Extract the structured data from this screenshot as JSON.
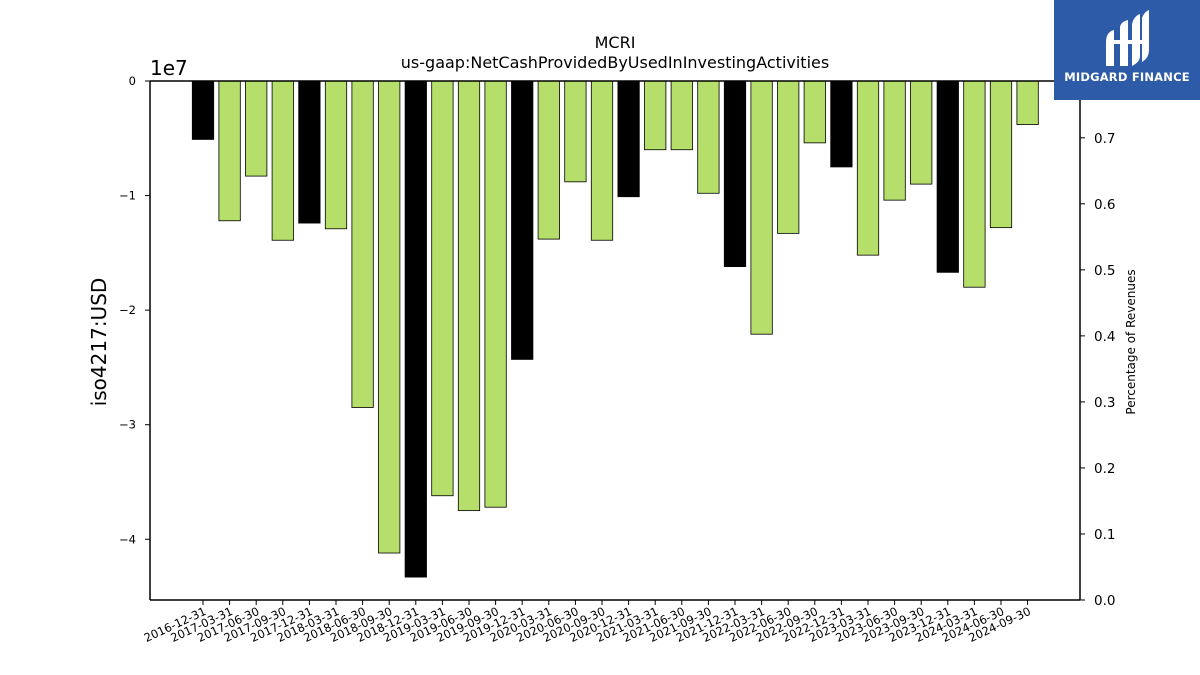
{
  "logo": {
    "text": "MIDGARD FINANCE",
    "icon": "midgard-mh-logo-icon",
    "bg_color": "#2d5ba8"
  },
  "chart_data": {
    "type": "bar",
    "title": "MCRI",
    "subtitle": "us-gaap:NetCashProvidedByUsedInInvestingActivities",
    "ylabel": "iso4217:USD",
    "ylabel_right": "Percentage of Revenues",
    "y_offset_label": "1e7",
    "y_scale": 10000000,
    "ylim": [
      -4.53,
      0
    ],
    "y_ticks": [
      0,
      -1,
      -2,
      -3,
      -4
    ],
    "y_tick_labels": [
      "0",
      "−1",
      "−2",
      "−3",
      "−4"
    ],
    "y2lim": [
      0.0,
      0.786
    ],
    "y2_ticks": [
      0.0,
      0.1,
      0.2,
      0.3,
      0.4,
      0.5,
      0.6,
      0.7
    ],
    "y2_tick_labels": [
      "0.0",
      "0.1",
      "0.2",
      "0.3",
      "0.4",
      "0.5",
      "0.6",
      "0.7"
    ],
    "categories": [
      "2016-12-31",
      "2017-03-31",
      "2017-06-30",
      "2017-09-30",
      "2017-12-31",
      "2018-03-31",
      "2018-06-30",
      "2018-09-30",
      "2018-12-31",
      "2019-03-31",
      "2019-06-30",
      "2019-09-30",
      "2019-12-31",
      "2020-03-31",
      "2020-06-30",
      "2020-09-30",
      "2020-12-31",
      "2021-03-31",
      "2021-06-30",
      "2021-09-30",
      "2021-12-31",
      "2022-03-31",
      "2022-06-30",
      "2022-09-30",
      "2022-12-31",
      "2023-03-31",
      "2023-06-30",
      "2023-09-30",
      "2023-12-31",
      "2024-03-31",
      "2024-06-30",
      "2024-09-30"
    ],
    "values": [
      -5100000,
      -12200000,
      -8300000,
      -13900000,
      -12400000,
      -12900000,
      -28500000,
      -41200000,
      -43300000,
      -36200000,
      -37500000,
      -37200000,
      -24300000,
      -13800000,
      -8800000,
      -13900000,
      -10100000,
      -6000000,
      -6000000,
      -9800000,
      -16200000,
      -22100000,
      -13300000,
      -5400000,
      -7500000,
      -15200000,
      -10400000,
      -9000000,
      -16700000,
      -18000000,
      -12800000,
      -3800000
    ],
    "bar_colors": [
      "#000000",
      "#b5de6a",
      "#b5de6a",
      "#b5de6a",
      "#000000",
      "#b5de6a",
      "#b5de6a",
      "#b5de6a",
      "#000000",
      "#b5de6a",
      "#b5de6a",
      "#b5de6a",
      "#000000",
      "#b5de6a",
      "#b5de6a",
      "#b5de6a",
      "#000000",
      "#b5de6a",
      "#b5de6a",
      "#b5de6a",
      "#000000",
      "#b5de6a",
      "#b5de6a",
      "#b5de6a",
      "#000000",
      "#b5de6a",
      "#b5de6a",
      "#b5de6a",
      "#000000",
      "#b5de6a",
      "#b5de6a",
      "#b5de6a"
    ],
    "grid": false,
    "legend": "none"
  }
}
